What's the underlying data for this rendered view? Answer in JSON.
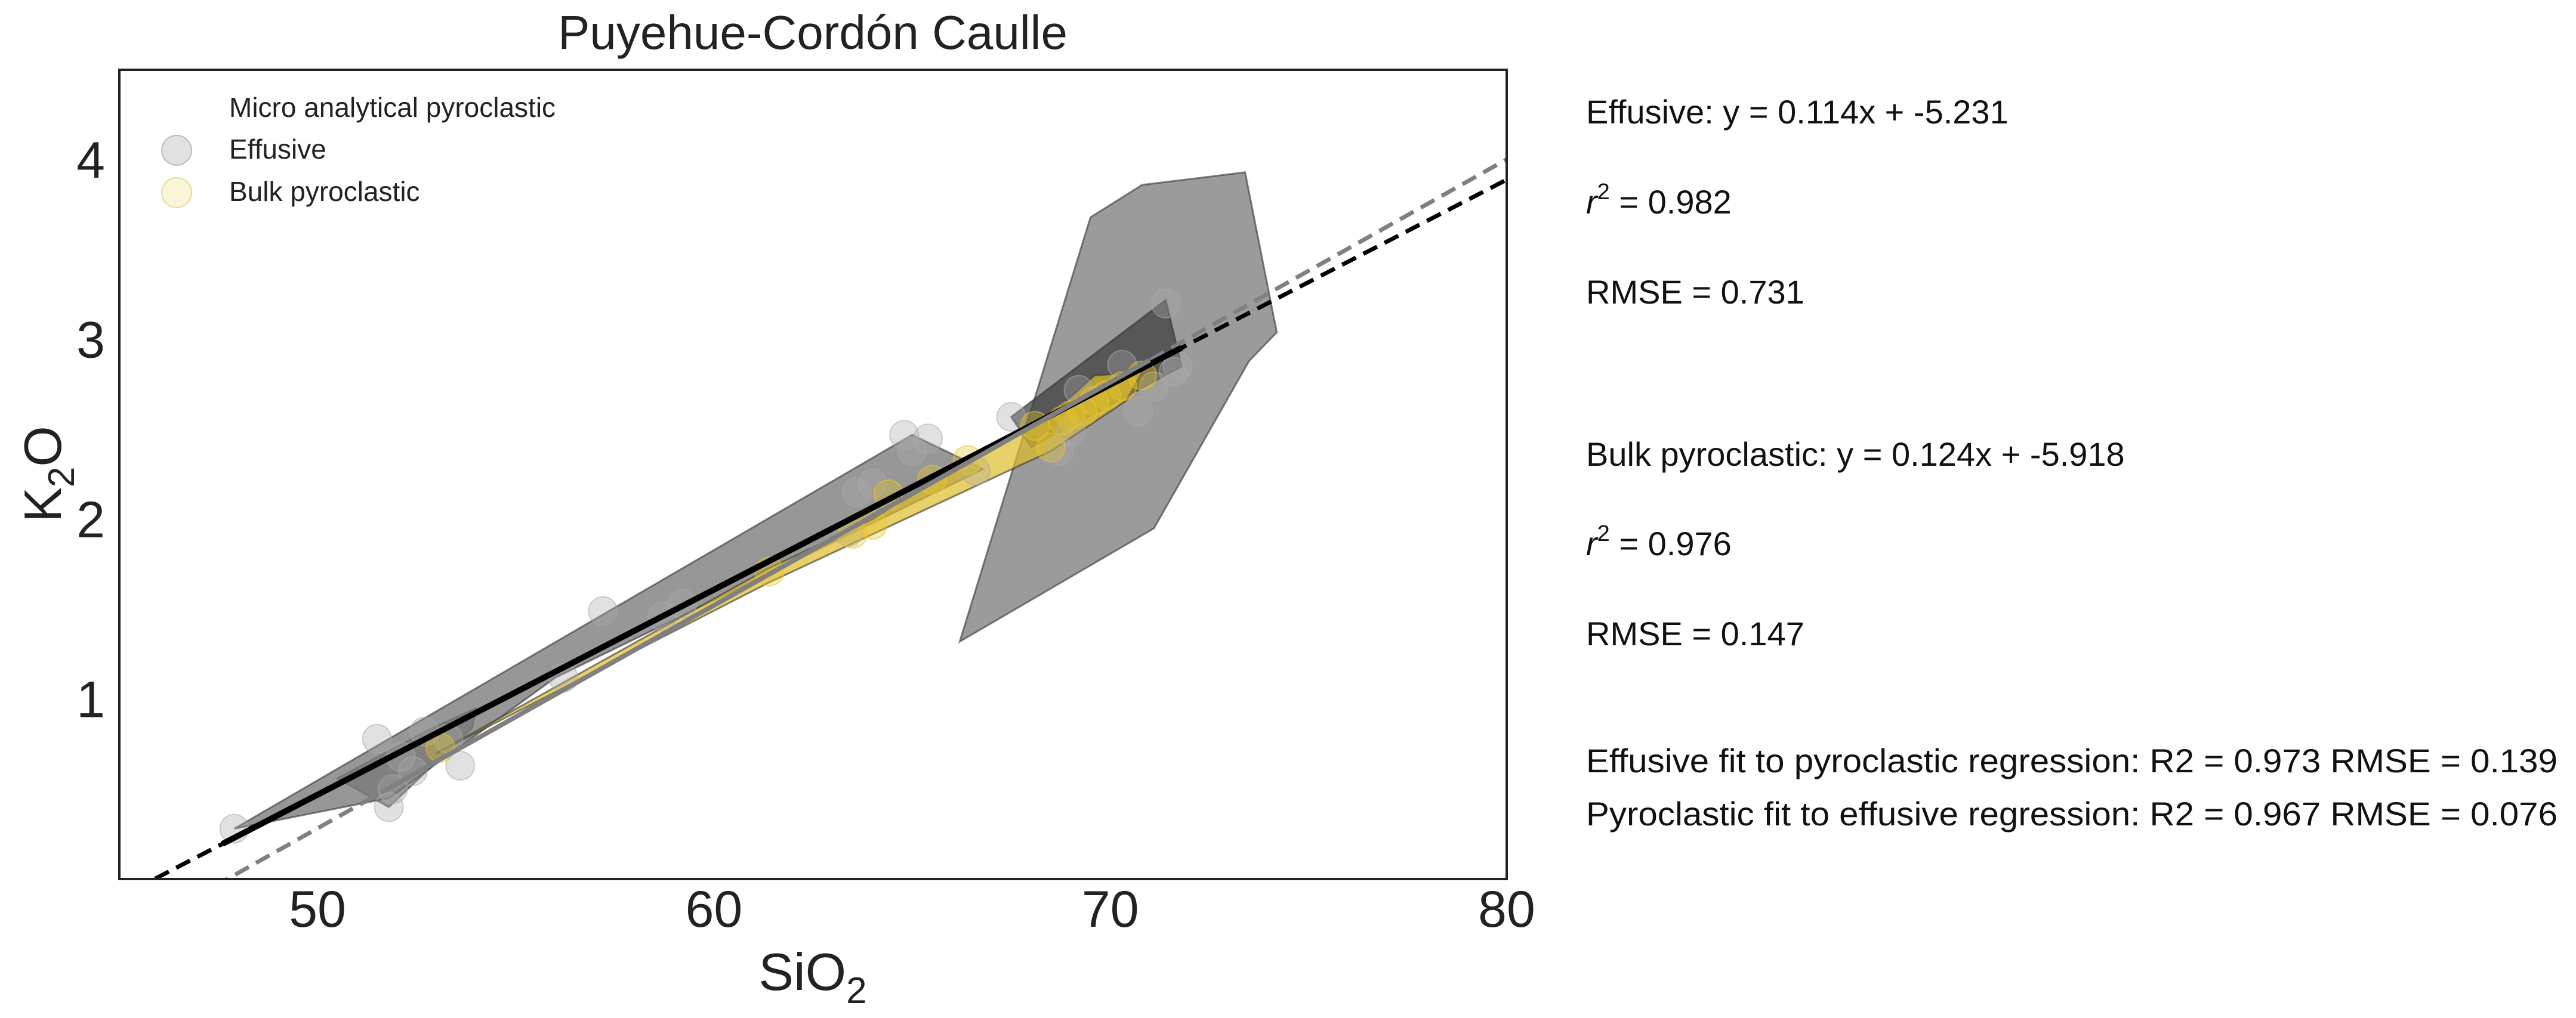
{
  "chart_data": {
    "type": "scatter",
    "title": "Puyehue-Cordón Caulle",
    "xlabel": {
      "main": "SiO",
      "sub": "2"
    },
    "ylabel": {
      "pre": "K",
      "sub": "2",
      "post": "O"
    },
    "xlim": [
      45,
      80
    ],
    "ylim": [
      0,
      4.5
    ],
    "xticks": [
      50,
      60,
      70,
      80
    ],
    "yticks": [
      1,
      2,
      3,
      4
    ],
    "grid": false,
    "legend_position": "top-left",
    "legend": [
      {
        "label": "Micro analytical pyroclastic",
        "marker": "none"
      },
      {
        "label": "Effusive",
        "marker": "#bdbdbd"
      },
      {
        "label": "Bulk pyroclastic",
        "marker": "#f5e9a8"
      }
    ],
    "series": [
      {
        "name": "Effusive",
        "color": "#a9a9a9",
        "points": [
          [
            47.9,
            0.28
          ],
          [
            51.5,
            0.78
          ],
          [
            51.8,
            0.4
          ],
          [
            51.9,
            0.5
          ],
          [
            52.1,
            0.68
          ],
          [
            52.4,
            0.6
          ],
          [
            52.7,
            0.82
          ],
          [
            53.3,
            0.78
          ],
          [
            53.6,
            0.63
          ],
          [
            56.2,
            1.12
          ],
          [
            57.2,
            1.49
          ],
          [
            58.7,
            1.46
          ],
          [
            59.2,
            1.53
          ],
          [
            63.4,
            1.93
          ],
          [
            63.6,
            2.15
          ],
          [
            64.0,
            2.2
          ],
          [
            64.8,
            2.47
          ],
          [
            65.0,
            2.38
          ],
          [
            65.4,
            2.45
          ],
          [
            66.6,
            2.27
          ],
          [
            67.5,
            2.57
          ],
          [
            68.7,
            2.38
          ],
          [
            69.2,
            2.72
          ],
          [
            70.3,
            2.86
          ],
          [
            70.7,
            2.6
          ],
          [
            71.1,
            2.74
          ],
          [
            71.4,
            3.2
          ],
          [
            71.6,
            2.82
          ],
          [
            71.7,
            2.85
          ],
          [
            69.0,
            2.49
          ]
        ]
      },
      {
        "name": "Bulk pyroclastic",
        "color": "#e8c62a",
        "points": [
          [
            53.1,
            0.73
          ],
          [
            61.4,
            1.71
          ],
          [
            63.5,
            1.92
          ],
          [
            64.0,
            1.97
          ],
          [
            64.4,
            2.14
          ],
          [
            65.5,
            2.22
          ],
          [
            66.4,
            2.33
          ],
          [
            68.1,
            2.52
          ],
          [
            68.5,
            2.4
          ],
          [
            68.8,
            2.55
          ],
          [
            69.0,
            2.58
          ],
          [
            69.3,
            2.6
          ],
          [
            69.6,
            2.66
          ],
          [
            69.9,
            2.69
          ],
          [
            70.3,
            2.74
          ],
          [
            70.8,
            2.8
          ]
        ]
      }
    ],
    "hulls": [
      {
        "fill": "#6e6e6e",
        "opacity": 0.72,
        "points": [
          [
            50.5,
            0.56
          ],
          [
            52.8,
            0.83
          ],
          [
            54,
            0.95
          ],
          [
            53.9,
            0.84
          ],
          [
            51.8,
            0.4
          ]
        ]
      },
      {
        "fill": "#7a7a7a",
        "opacity": 0.78,
        "points": [
          [
            47.9,
            0.28
          ],
          [
            65,
            2.47
          ],
          [
            66.8,
            2.28
          ],
          [
            56,
            1.12
          ],
          [
            51.8,
            0.45
          ]
        ]
      },
      {
        "fill": "#7f7f7f",
        "opacity": 0.78,
        "points": [
          [
            66.2,
            1.32
          ],
          [
            69.5,
            3.68
          ],
          [
            70.8,
            3.86
          ],
          [
            73.4,
            3.93
          ],
          [
            74.2,
            3.04
          ],
          [
            73.5,
            2.88
          ],
          [
            71.1,
            1.95
          ]
        ]
      },
      {
        "fill": "#3d3d3d",
        "opacity": 0.72,
        "points": [
          [
            67.5,
            2.57
          ],
          [
            71.4,
            3.22
          ],
          [
            71.8,
            2.85
          ],
          [
            69.7,
            2.6
          ],
          [
            68.0,
            2.4
          ]
        ]
      },
      {
        "fill": "#e0bd2a",
        "opacity": 0.7,
        "points": [
          [
            53.0,
            0.7
          ],
          [
            61.4,
            1.73
          ],
          [
            64.0,
            2.0
          ],
          [
            66.4,
            2.35
          ],
          [
            68.5,
            2.58
          ],
          [
            69.6,
            2.8
          ],
          [
            70.8,
            2.82
          ],
          [
            70.4,
            2.66
          ],
          [
            68.5,
            2.38
          ],
          [
            61.4,
            1.65
          ]
        ]
      }
    ],
    "fits": [
      {
        "name": "Effusive",
        "slope": 0.114,
        "intercept": -5.231,
        "x": [
          47.6,
          71.8
        ],
        "color": "#000000",
        "style": "solid"
      },
      {
        "name": "Effusive",
        "slope": 0.114,
        "intercept": -5.231,
        "x": [
          45.9,
          80
        ],
        "color": "#000000",
        "style": "dashed"
      },
      {
        "name": "Bulk pyroclastic",
        "slope": 0.124,
        "intercept": -5.918,
        "x": [
          51.7,
          71.0
        ],
        "color": "#808080",
        "style": "solid"
      },
      {
        "name": "Bulk pyroclastic",
        "slope": 0.124,
        "intercept": -5.918,
        "x": [
          47.4,
          80
        ],
        "color": "#808080",
        "style": "dashed"
      }
    ],
    "annotations": {
      "effusive_eq": "Effusive: y = 0.114x + -5.231",
      "effusive_r2": " = 0.982",
      "effusive_rmse": "RMSE = 0.731",
      "bulk_eq": "Bulk pyroclastic: y = 0.124x + -5.918",
      "bulk_r2": " = 0.976",
      "bulk_rmse": "RMSE = 0.147",
      "cross1": "Effusive fit to pyroclastic regression: R2 = 0.973 RMSE = 0.139",
      "cross2": "Pyroclastic fit to effusive regression: R2 = 0.967 RMSE = 0.076",
      "r2_label": "r",
      "r2_sup": "2"
    }
  }
}
